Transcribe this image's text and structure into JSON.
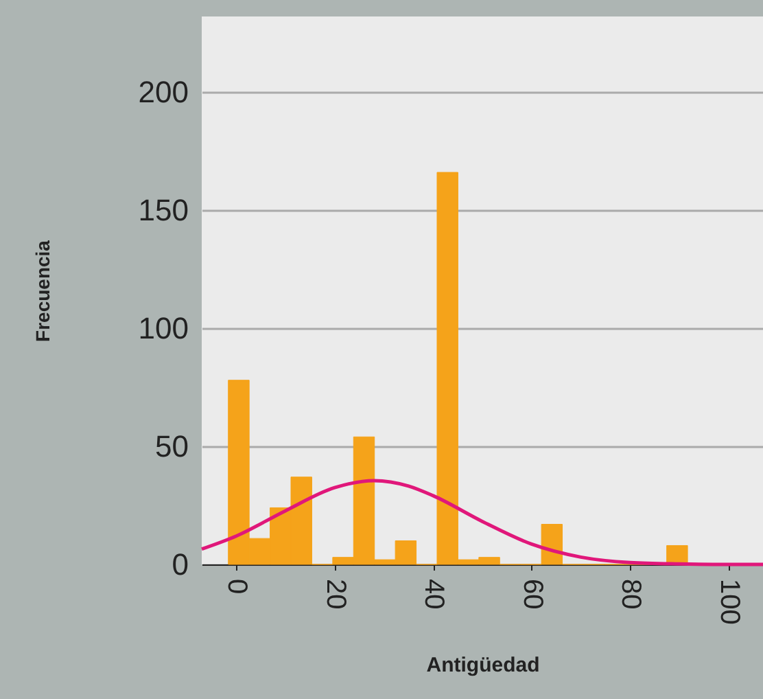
{
  "chart_data": {
    "type": "histogram",
    "xlabel": "Antigüedad",
    "ylabel": "Frecuencia",
    "bins": [
      -1.6,
      2.64,
      6.88,
      11.12,
      15.36,
      19.6,
      23.84,
      28.08,
      32.32,
      36.56,
      40.8,
      45.04,
      49.28,
      53.52,
      57.76,
      62,
      66.24,
      70.48,
      74.72,
      78.96,
      83.2,
      87.44,
      91.68
    ],
    "values": [
      78,
      11,
      24,
      37,
      0,
      3,
      54,
      2,
      10,
      0,
      166,
      2,
      3,
      0,
      0,
      17,
      0,
      0,
      0,
      0,
      0,
      8
    ],
    "color": "#f5a31a",
    "series": [
      {
        "type": "line",
        "color": "#e0177a",
        "x": [
          -7,
          0,
          10,
          20,
          28,
          35,
          40,
          50,
          60,
          70,
          80,
          90,
          100,
          107
        ],
        "values": [
          6.5,
          12,
          22.7,
          32.5,
          35.5,
          33.2,
          29.1,
          18.2,
          8.6,
          3.1,
          0.8,
          0.2,
          0,
          0
        ]
      }
    ],
    "xlim": [
      -7,
      107
    ],
    "xticks": [
      0,
      20,
      40,
      60,
      80,
      100
    ],
    "ylim": [
      0,
      232
    ],
    "yticks": [
      0,
      50,
      100,
      150,
      200
    ],
    "grid": "y"
  }
}
